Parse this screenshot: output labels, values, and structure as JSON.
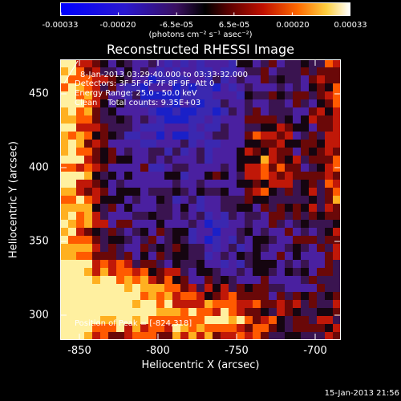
{
  "colorbar": {
    "ticks": [
      "-0.00033",
      "-0.00020",
      "-6.5e-05",
      "6.5e-05",
      "0.00020",
      "0.00033"
    ],
    "unit_label": "(photons cm⁻² s⁻¹ asec⁻²)",
    "colors": [
      "#0000ff",
      "#2a10c0",
      "#3a1070",
      "#000000",
      "#6a0000",
      "#c01000",
      "#ff6000",
      "#ffd040",
      "#ffffff"
    ]
  },
  "title": "Reconstructed RHESSI Image",
  "info": {
    "line1": "8-Jan-2013 03:29:40.000 to 03:33:32.000",
    "line2": "Detectors: 3F 5F 6F 7F 8F 9F, Att 0",
    "line3": "Energy Range: 25.0 - 50.0 keV",
    "line4": "Clean    Total counts: 9.35E+03",
    "peak": "Position of Peak = [-824,318]"
  },
  "axes": {
    "xlabel": "Heliocentric X (arcsec)",
    "ylabel": "Heliocentric Y (arcsec)",
    "xticks": [
      "-850",
      "-800",
      "-750",
      "-700"
    ],
    "yticks": [
      "450",
      "400",
      "350",
      "300"
    ]
  },
  "timestamp": "15-Jan-2013 21:56"
}
